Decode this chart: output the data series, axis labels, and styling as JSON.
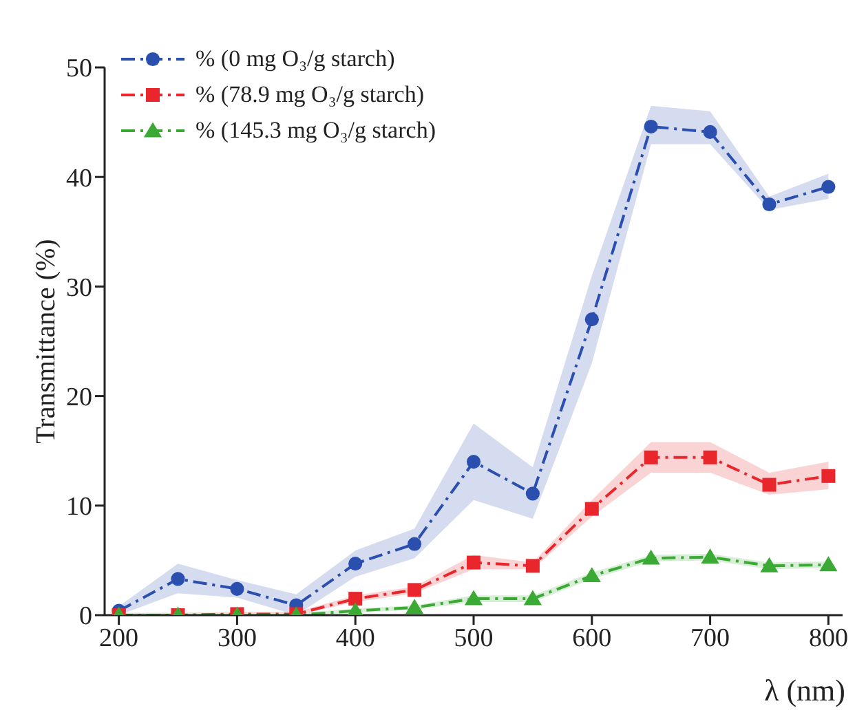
{
  "chart_data": {
    "type": "line",
    "xlabel": "λ (nm)",
    "ylabel": "Transmittance (%)",
    "x": [
      200,
      250,
      300,
      350,
      400,
      450,
      500,
      550,
      600,
      650,
      700,
      750,
      800
    ],
    "series": [
      {
        "name": "% (0 mg O₃/g starch)",
        "color": "#2b4fae",
        "marker": "circle",
        "values": [
          0.4,
          3.3,
          2.4,
          0.9,
          4.7,
          6.5,
          14.0,
          11.1,
          27.0,
          44.6,
          44.1,
          37.5,
          39.1
        ],
        "lower": [
          0,
          2.0,
          1.6,
          0,
          3.5,
          5.2,
          10.5,
          8.8,
          23,
          43,
          43,
          37,
          38
        ],
        "upper": [
          0.8,
          4.7,
          3.2,
          1.9,
          5.9,
          7.9,
          17.5,
          13.5,
          31,
          46.5,
          46,
          38.2,
          40.3
        ]
      },
      {
        "name": "% (78.9 mg O₃/g starch)",
        "color": "#e8262b",
        "marker": "square",
        "values": [
          0,
          0,
          0.1,
          0.1,
          1.5,
          2.3,
          4.8,
          4.5,
          9.7,
          14.4,
          14.4,
          11.9,
          12.7
        ],
        "lower": [
          0,
          0,
          0,
          0,
          1.2,
          2.0,
          4.2,
          4.2,
          9.0,
          13.0,
          13.0,
          11.0,
          11.5
        ],
        "upper": [
          0.2,
          0.2,
          0.3,
          0.3,
          1.8,
          2.6,
          5.5,
          4.8,
          10.5,
          15.8,
          15.8,
          13.0,
          14.0
        ]
      },
      {
        "name": "% (145.3 mg O₃/g starch)",
        "color": "#3aaa35",
        "marker": "triangle",
        "values": [
          0,
          0,
          0,
          0,
          0.4,
          0.7,
          1.5,
          1.5,
          3.6,
          5.2,
          5.3,
          4.5,
          4.6
        ],
        "lower": [
          0,
          0,
          0,
          0,
          0.2,
          0.5,
          1.2,
          1.2,
          3.3,
          4.9,
          5.0,
          4.2,
          4.3
        ],
        "upper": [
          0.2,
          0.2,
          0.2,
          0.2,
          0.6,
          0.9,
          1.8,
          1.8,
          3.9,
          5.5,
          5.6,
          4.8,
          4.9
        ]
      }
    ],
    "xlim": [
      188,
      812
    ],
    "xticks": [
      200,
      300,
      400,
      500,
      600,
      700,
      800
    ],
    "ylim": [
      0,
      50
    ],
    "yticks": [
      0,
      10,
      20,
      30,
      40,
      50
    ],
    "grid": false,
    "legend": "top left",
    "line_style": "dashed"
  }
}
